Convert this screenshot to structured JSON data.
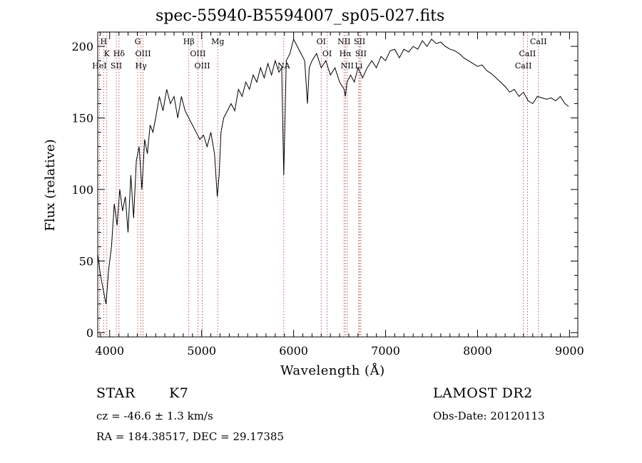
{
  "chart_data": {
    "type": "line",
    "title": "spec-55940-B5594007_sp05-027.fits",
    "xlabel": "Wavelength (Å)",
    "ylabel": "Flux (relative)",
    "xlim": [
      3870,
      9090
    ],
    "ylim": [
      -3,
      210
    ],
    "x_ticks": [
      4000,
      5000,
      6000,
      7000,
      8000,
      9000
    ],
    "y_ticks": [
      0,
      50,
      100,
      150,
      200
    ],
    "series": [
      {
        "x": [
          3870,
          3900,
          3930,
          3960,
          3990,
          4020,
          4050,
          4080,
          4110,
          4140,
          4170,
          4200,
          4230,
          4260,
          4290,
          4320,
          4350,
          4380,
          4410,
          4440,
          4470,
          4500,
          4540,
          4580,
          4620,
          4660,
          4700,
          4740,
          4780,
          4820,
          4860,
          4900,
          4940,
          4980,
          5020,
          5060,
          5100,
          5140,
          5170,
          5190,
          5210,
          5240,
          5280,
          5320,
          5360,
          5400,
          5440,
          5480,
          5520,
          5560,
          5600,
          5640,
          5680,
          5720,
          5760,
          5800,
          5840,
          5870,
          5893,
          5920,
          5960,
          6000,
          6040,
          6080,
          6120,
          6150,
          6170,
          6200,
          6250,
          6300,
          6350,
          6400,
          6450,
          6500,
          6550,
          6563,
          6580,
          6620,
          6660,
          6700,
          6750,
          6800,
          6850,
          6900,
          6950,
          7000,
          7050,
          7100,
          7150,
          7200,
          7250,
          7300,
          7350,
          7400,
          7450,
          7500,
          7550,
          7600,
          7650,
          7700,
          7750,
          7800,
          7850,
          7900,
          7950,
          8000,
          8050,
          8100,
          8150,
          8200,
          8250,
          8300,
          8350,
          8400,
          8450,
          8500,
          8550,
          8600,
          8650,
          8700,
          8750,
          8800,
          8850,
          8900,
          8950,
          8990
        ],
        "y": [
          55,
          40,
          30,
          20,
          45,
          60,
          90,
          75,
          100,
          85,
          95,
          70,
          110,
          80,
          120,
          130,
          100,
          135,
          125,
          145,
          140,
          150,
          165,
          155,
          170,
          160,
          165,
          150,
          165,
          155,
          150,
          145,
          140,
          135,
          138,
          130,
          140,
          125,
          95,
          110,
          140,
          150,
          155,
          160,
          155,
          170,
          165,
          175,
          170,
          180,
          175,
          185,
          178,
          188,
          180,
          190,
          182,
          185,
          110,
          190,
          195,
          205,
          200,
          195,
          190,
          160,
          185,
          190,
          195,
          185,
          190,
          180,
          185,
          175,
          170,
          165,
          175,
          180,
          175,
          185,
          178,
          185,
          190,
          185,
          193,
          190,
          197,
          198,
          192,
          198,
          196,
          200,
          198,
          204,
          200,
          205,
          202,
          203,
          200,
          198,
          197,
          195,
          192,
          190,
          188,
          186,
          187,
          183,
          181,
          178,
          175,
          172,
          168,
          170,
          165,
          168,
          162,
          160,
          165,
          164,
          163,
          164,
          162,
          165,
          160,
          158
        ]
      }
    ],
    "line_markers": [
      {
        "label": "H",
        "wavelength": 3934,
        "row": 0
      },
      {
        "label": "K",
        "wavelength": 3969,
        "row": 1
      },
      {
        "label": "HeI",
        "wavelength": 3889,
        "row": 2
      },
      {
        "label": "Hδ",
        "wavelength": 4102,
        "row": 1
      },
      {
        "label": "SII",
        "wavelength": 4072,
        "row": 2
      },
      {
        "label": "G",
        "wavelength": 4305,
        "row": 0
      },
      {
        "label": "OIII",
        "wavelength": 4363,
        "row": 1
      },
      {
        "label": "Hγ",
        "wavelength": 4340,
        "row": 2
      },
      {
        "label": "Hβ",
        "wavelength": 4861,
        "row": 0
      },
      {
        "label": "OIII",
        "wavelength": 4959,
        "row": 1
      },
      {
        "label": "OIII",
        "wavelength": 5007,
        "row": 2
      },
      {
        "label": "Mg",
        "wavelength": 5175,
        "row": 0
      },
      {
        "label": "NA",
        "wavelength": 5893,
        "row": 2
      },
      {
        "label": "OI",
        "wavelength": 6300,
        "row": 0
      },
      {
        "label": "OI",
        "wavelength": 6364,
        "row": 1
      },
      {
        "label": "NII",
        "wavelength": 6548,
        "row": 0
      },
      {
        "label": "NII",
        "wavelength": 6583,
        "row": 2
      },
      {
        "label": "SII",
        "wavelength": 6717,
        "row": 0
      },
      {
        "label": "SII",
        "wavelength": 6731,
        "row": 1
      },
      {
        "label": "Li",
        "wavelength": 6708,
        "row": 2
      },
      {
        "label": "Hα",
        "wavelength": 6563,
        "row": 1
      },
      {
        "label": "CaII",
        "wavelength": 8662,
        "row": 0
      },
      {
        "label": "CaII",
        "wavelength": 8542,
        "row": 1
      },
      {
        "label": "CaII",
        "wavelength": 8498,
        "row": 2
      }
    ]
  },
  "info": {
    "object_type": "STAR",
    "subclass": "K7",
    "survey": "LAMOST DR2",
    "cz": "cz = -46.6 ± 1.3 km/s",
    "obs_date": "Obs-Date: 20120113",
    "radec": "RA = 184.38517, DEC =  29.17385"
  }
}
